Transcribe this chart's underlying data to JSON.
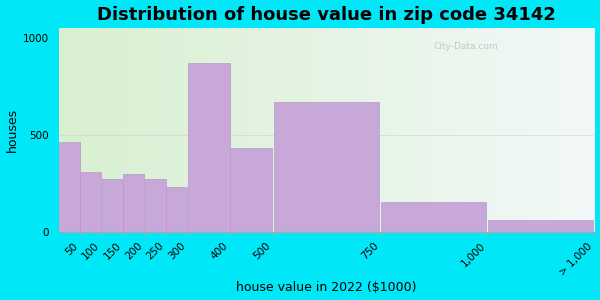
{
  "title": "Distribution of house value in zip code 34142",
  "xlabel": "house value in 2022 ($1000)",
  "ylabel": "houses",
  "bin_edges": [
    0,
    50,
    100,
    150,
    200,
    250,
    300,
    400,
    500,
    750,
    1000,
    1250
  ],
  "bar_values": [
    460,
    310,
    270,
    300,
    270,
    230,
    870,
    430,
    670,
    155,
    60
  ],
  "tick_positions": [
    50,
    100,
    150,
    200,
    250,
    300,
    400,
    500,
    750,
    1000,
    1250
  ],
  "tick_labels": [
    "50",
    "100",
    "150",
    "200",
    "250",
    "300",
    "400",
    "500",
    "750",
    "1,000",
    "> 1,000"
  ],
  "bar_color": "#c8a8d8",
  "bar_edge_color": "#b898c8",
  "ylim": [
    0,
    1050
  ],
  "yticks": [
    0,
    500,
    1000
  ],
  "bg_outer": "#00e8f8",
  "title_fontsize": 13,
  "axis_label_fontsize": 9,
  "tick_fontsize": 7.5
}
